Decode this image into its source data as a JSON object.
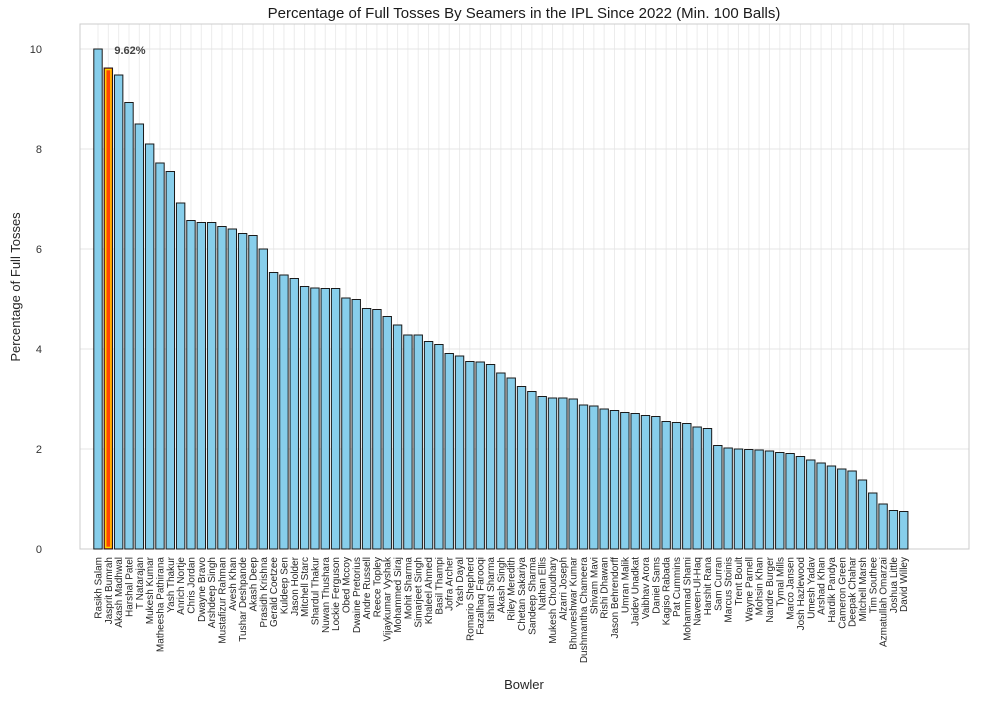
{
  "chart_data": {
    "type": "bar",
    "title": "Percentage of Full Tosses By Seamers in the IPL Since 2022 (Min. 100 Balls)",
    "xlabel": "Bowler",
    "ylabel": "Percentage of Full Tosses",
    "ylim": [
      0,
      10.5
    ],
    "yticks": [
      0,
      2,
      4,
      6,
      8,
      10
    ],
    "grid": true,
    "bar_color": "#87CEEB",
    "highlight_color": "#FF4500",
    "highlight_edge": "#FFD700",
    "highlight_category": "Jasprit Bumrah",
    "annotation": {
      "text": "9.62%",
      "category": "Jasprit Bumrah"
    },
    "categories": [
      "Rasikh Salam",
      "Jasprit Bumrah",
      "Akash Madhwal",
      "Harshal Patel",
      "T Natarajan",
      "Mukesh Kumar",
      "Matheesha Pathirana",
      "Yash Thakur",
      "Anrich Nortje",
      "Chris Jordan",
      "Dwayne Bravo",
      "Arshdeep Singh",
      "Mustafizur Rahman",
      "Avesh Khan",
      "Tushar Deshpande",
      "Akash Deep",
      "Prasidh Krishna",
      "Gerald Coetzee",
      "Kuldeep Sen",
      "Jason Holder",
      "Mitchell Starc",
      "Shardul Thakur",
      "Nuwan Thushara",
      "Lockie Ferguson",
      "Obed Mccoy",
      "Dwaine Pretorius",
      "Andre Russell",
      "Reece Topley",
      "Vijaykumar Vyshak",
      "Mohammed Siraj",
      "Mohit Sharma",
      "Simarjeet Singh",
      "Khaleel Ahmed",
      "Basil Thampi",
      "Jofra Archer",
      "Yash Dayal",
      "Romario Shepherd",
      "Fazalhaq Farooqi",
      "Ishant Sharma",
      "Akash Singh",
      "Riley Meredith",
      "Chetan Sakariya",
      "Sandeep Sharma",
      "Nathan Ellis",
      "Mukesh Choudhary",
      "Alzarri Joseph",
      "Bhuvneshwar Kumar",
      "Dushmantha Chameera",
      "Shivam Mavi",
      "Rishi Dhawan",
      "Jason Behrendorff",
      "Umran Malik",
      "Jaidev Unadkat",
      "Vaibhav Arora",
      "Daniel Sams",
      "Kagiso Rabada",
      "Pat Cummins",
      "Mohammad Shami",
      "Naveen-Ul-Haq",
      "Harshit Rana",
      "Sam Curran",
      "Marcus Stoinis",
      "Trent Boult",
      "Wayne Parnell",
      "Mohsin Khan",
      "Nandre Burger",
      "Tymal Mills",
      "Marco Jansen",
      "Josh Hazlewood",
      "Umesh Yadav",
      "Arshad Khan",
      "Hardik Pandya",
      "Cameron Green",
      "Deepak Chahar",
      "Mitchell Marsh",
      "Tim Southee",
      "Azmatullah Omarzai",
      "Joshua Little",
      "David Willey"
    ],
    "values": [
      10.0,
      9.62,
      9.48,
      8.93,
      8.5,
      8.1,
      7.72,
      7.55,
      6.92,
      6.57,
      6.53,
      6.53,
      6.45,
      6.4,
      6.31,
      6.27,
      6.0,
      5.53,
      5.48,
      5.41,
      5.25,
      5.22,
      5.21,
      5.21,
      5.02,
      4.99,
      4.81,
      4.79,
      4.65,
      4.48,
      4.28,
      4.28,
      4.15,
      4.09,
      3.91,
      3.86,
      3.75,
      3.74,
      3.69,
      3.52,
      3.42,
      3.25,
      3.15,
      3.05,
      3.02,
      3.02,
      3.0,
      2.88,
      2.86,
      2.8,
      2.77,
      2.73,
      2.71,
      2.67,
      2.65,
      2.55,
      2.53,
      2.51,
      2.44,
      2.41,
      2.07,
      2.02,
      2.0,
      1.99,
      1.98,
      1.96,
      1.93,
      1.91,
      1.85,
      1.78,
      1.72,
      1.66,
      1.6,
      1.56,
      1.38,
      1.12,
      0.9,
      0.77,
      0.75
    ]
  }
}
